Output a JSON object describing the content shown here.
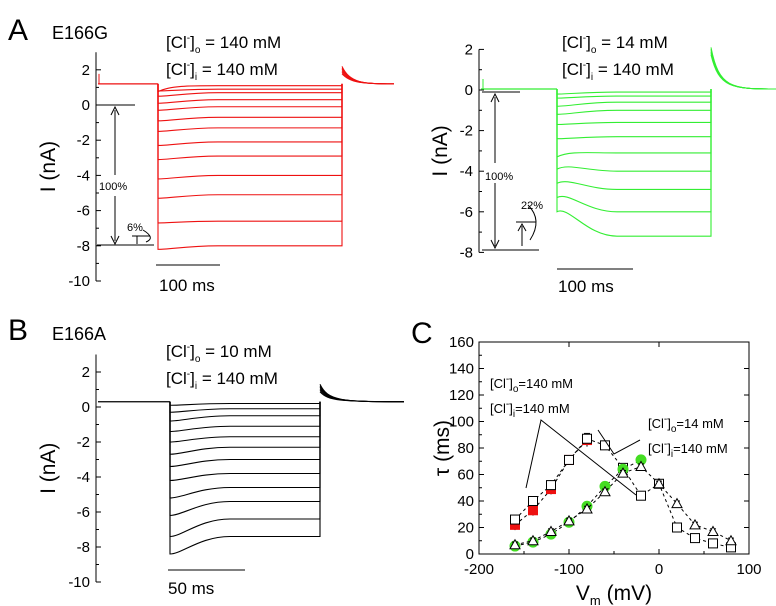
{
  "figure": {
    "panels": {
      "A": "A",
      "B": "B",
      "C": "C"
    },
    "mutants": {
      "A": "E166G",
      "B": "E166A"
    },
    "conditions": {
      "A1": {
        "o_value": " = 140 mM",
        "i_value": " = 140 mM"
      },
      "A2": {
        "o_value": " = 14 mM",
        "i_value": " = 140 mM"
      },
      "B": {
        "o_value": " = 10 mM",
        "i_value": " = 140 mM"
      },
      "C_red": {
        "o_value": "=140 mM",
        "i_value": "=140 mM"
      },
      "C_green": {
        "o_value": "=14 mM",
        "i_value": "=140 mM"
      }
    },
    "conc_text": {
      "prefix": "[Cl",
      "sup": "-",
      "close": "]",
      "sub_o": "o",
      "sub_i": "i"
    },
    "annotations": {
      "A1_total": "100%",
      "A1_fraction": "6%",
      "A2_total": "100%",
      "A2_fraction": "22%"
    },
    "scale_bars": {
      "A1": "100 ms",
      "A2": "100 ms",
      "B": "50 ms"
    },
    "colors": {
      "red_traces": "#ee1111",
      "green_traces": "#33ee33",
      "black_traces": "#000000",
      "red_markers": "#ee1111",
      "green_markers": "#44dd22"
    }
  },
  "chart_data": [
    {
      "panel": "A",
      "type": "line",
      "title": "E166G",
      "ylabel": "I (nA)",
      "ylim": [
        -10,
        3
      ],
      "yticks": [
        2,
        0,
        -2,
        -4,
        -6,
        -8,
        -10
      ],
      "ytick_labels": [
        "2",
        "0",
        "-2",
        "-4",
        "-6",
        "-8",
        "-10"
      ],
      "holding_current": 1.2,
      "steady_state_levels": [
        1.1,
        0.9,
        0.7,
        0.3,
        -0.1,
        -0.7,
        -1.3,
        -2.1,
        -2.9,
        -4.0,
        -5.1,
        -6.6,
        -8.0
      ],
      "instantaneous_levels": [
        1.1,
        0.8,
        0.5,
        0.1,
        -0.3,
        -0.9,
        -1.5,
        -2.3,
        -3.1,
        -4.2,
        -5.3,
        -6.7,
        -8.2
      ],
      "tail_peak": 2.2,
      "scale_bar": "100 ms"
    },
    {
      "panel": "A",
      "type": "line",
      "ylabel": "I (nA)",
      "ylim": [
        -8,
        2
      ],
      "yticks": [
        2,
        0,
        -2,
        -4,
        -6,
        -8
      ],
      "ytick_labels": [
        "2",
        "0",
        "-2",
        "-4",
        "-6",
        "-8"
      ],
      "holding_current": 0.05,
      "steady_state_levels": [
        -0.1,
        -0.3,
        -0.6,
        -1.0,
        -1.6,
        -2.3,
        -3.1,
        -4.0,
        -4.9,
        -6.0,
        -7.2
      ],
      "instantaneous_levels": [
        -0.2,
        -0.4,
        -0.8,
        -1.2,
        -1.7,
        -2.4,
        -3.0,
        -3.6,
        -4.3,
        -5.0,
        -5.7
      ],
      "tail_peak": 2.1,
      "scale_bar": "100 ms"
    },
    {
      "panel": "B",
      "type": "line",
      "title": "E166A",
      "ylabel": "I (nA)",
      "ylim": [
        -10,
        3
      ],
      "yticks": [
        2,
        0,
        -2,
        -4,
        -6,
        -8,
        -10
      ],
      "ytick_labels": [
        "2",
        "0",
        "-2",
        "-4",
        "-6",
        "-8",
        "-10"
      ],
      "holding_current": 0.3,
      "steady_state_levels": [
        0.2,
        -0.1,
        -0.5,
        -1.1,
        -1.7,
        -2.3,
        -3.0,
        -3.8,
        -4.6,
        -5.4,
        -6.4,
        -7.4
      ],
      "instantaneous_levels": [
        0.1,
        -0.3,
        -0.8,
        -1.4,
        -2.0,
        -2.7,
        -3.4,
        -4.2,
        -5.2,
        -6.2,
        -7.4,
        -8.4
      ],
      "tail_peak": 1.3,
      "scale_bar": "50 ms"
    },
    {
      "panel": "C",
      "type": "scatter",
      "xlabel": "V",
      "xlabel_sub": "m",
      "xlabel_unit": " (mV)",
      "ylabel": "τ (ms)",
      "xlim": [
        -200,
        100
      ],
      "ylim": [
        0,
        160
      ],
      "xticks": [
        -200,
        -100,
        0,
        100
      ],
      "yticks": [
        0,
        20,
        40,
        60,
        80,
        100,
        120,
        140,
        160
      ],
      "series": [
        {
          "marker": "filled-square-red",
          "x": [
            -160,
            -140,
            -120,
            -100,
            -80
          ],
          "y": [
            22,
            33,
            49,
            71,
            86
          ],
          "err": [
            4,
            4,
            4,
            3,
            5
          ]
        },
        {
          "marker": "open-square",
          "x": [
            -160,
            -140,
            -120,
            -100,
            -80,
            -60,
            -40,
            -20,
            0,
            20,
            40,
            60,
            80
          ],
          "y": [
            26,
            40,
            52,
            71,
            87,
            82,
            65,
            44,
            53,
            20,
            12,
            8,
            5
          ],
          "err": [
            3,
            3,
            3,
            3,
            3,
            2,
            2,
            2,
            2,
            2,
            2,
            2,
            2
          ]
        },
        {
          "marker": "filled-circle-green",
          "x": [
            -160,
            -140,
            -120,
            -100,
            -80,
            -60,
            -40,
            -20
          ],
          "y": [
            6,
            9,
            15,
            24,
            36,
            51,
            64,
            71
          ],
          "err": [
            2,
            2,
            2,
            2,
            2,
            3,
            3,
            3
          ]
        },
        {
          "marker": "open-triangle",
          "x": [
            -160,
            -140,
            -120,
            -100,
            -80,
            -60,
            -40,
            -20,
            0,
            20,
            40,
            60,
            80
          ],
          "y": [
            7,
            10,
            17,
            25,
            34,
            47,
            61,
            66,
            53,
            38,
            22,
            17,
            10
          ],
          "err": [
            2,
            2,
            2,
            2,
            2,
            2,
            2,
            2,
            2,
            2,
            2,
            2,
            2
          ]
        }
      ],
      "grid": false
    }
  ]
}
